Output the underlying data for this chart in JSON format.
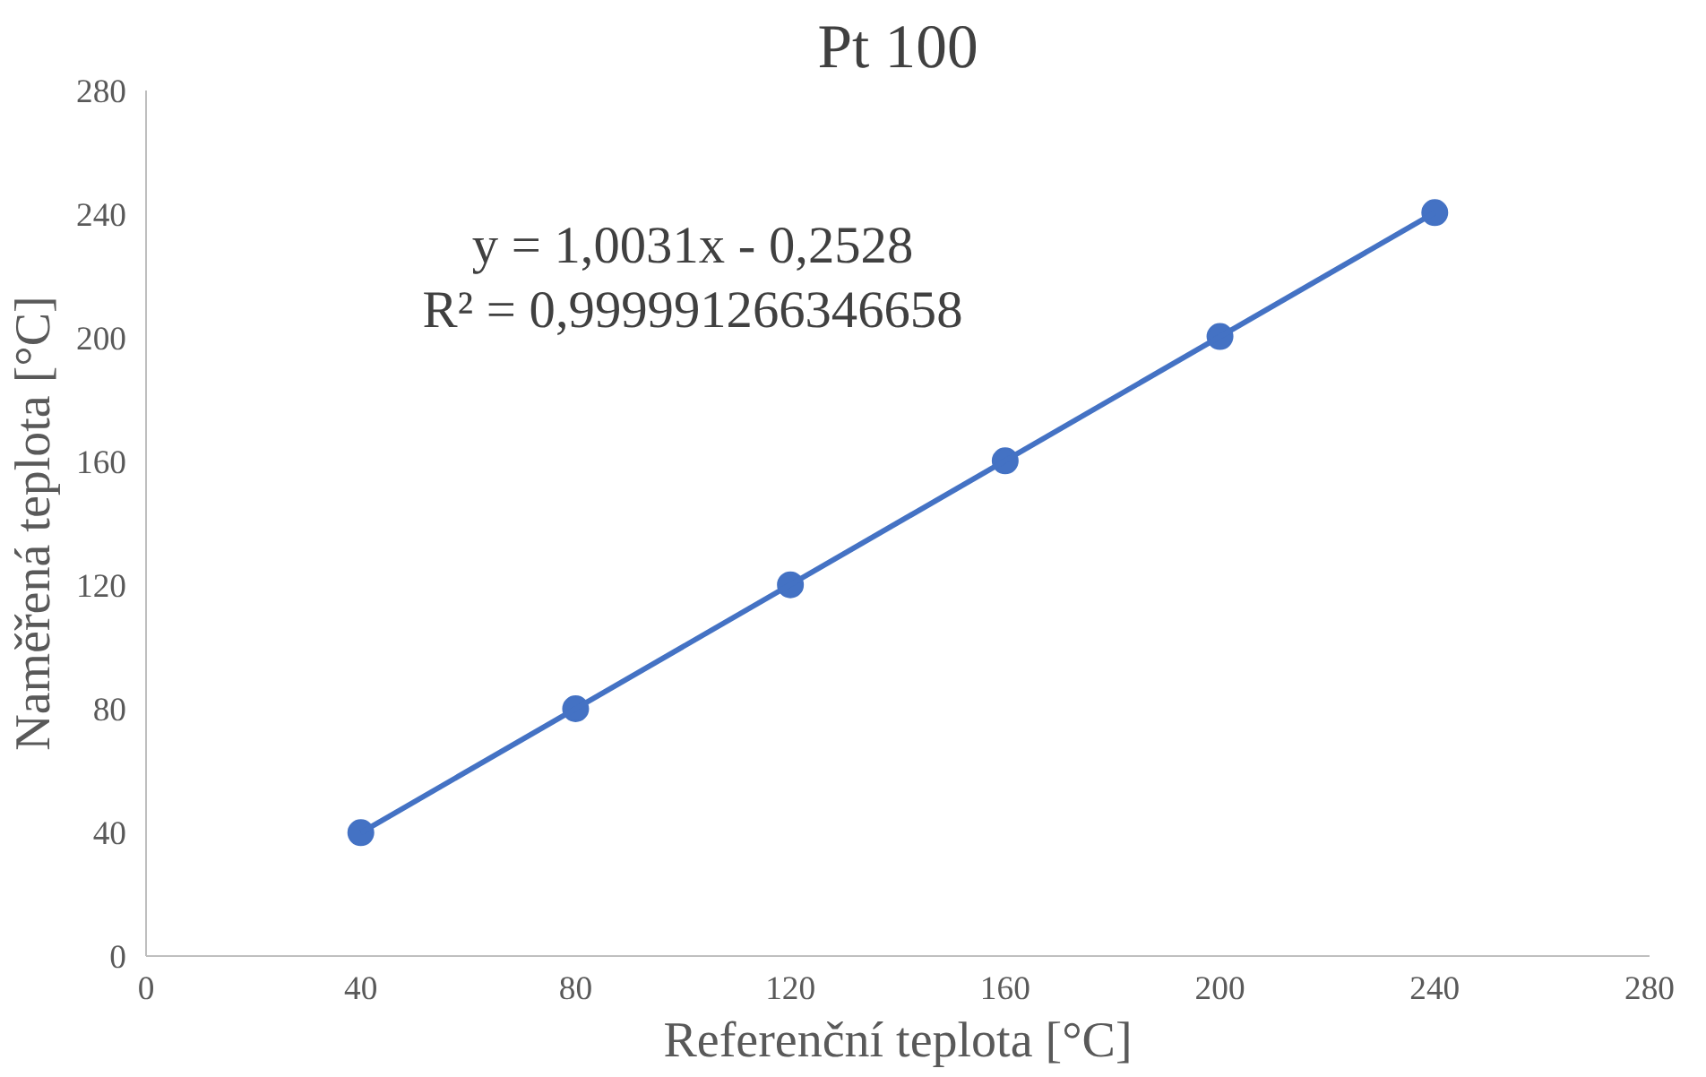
{
  "chart_data": {
    "type": "scatter",
    "title": "Pt 100",
    "xlabel": "Referenční teplota [°C]",
    "ylabel": "Naměřená teplota [°C]",
    "xlim": [
      0,
      280
    ],
    "ylim": [
      0,
      280
    ],
    "xticks": [
      0,
      40,
      80,
      120,
      160,
      200,
      240,
      280
    ],
    "yticks": [
      0,
      40,
      80,
      120,
      160,
      200,
      240,
      280
    ],
    "grid": false,
    "series": [
      {
        "color": "#4472c4",
        "marker": "circle",
        "x": [
          40,
          80,
          120,
          160,
          200,
          240
        ],
        "values": [
          39.9,
          80.0,
          120.1,
          160.2,
          200.4,
          240.5
        ]
      },
      {
        "type": "line",
        "color": "#4472c4",
        "marker": "none",
        "x": [
          40,
          240
        ],
        "values": [
          39.9,
          240.5
        ]
      }
    ],
    "annotations": [
      "y = 1,0031x - 0,2528",
      "R² = 0,999991266346658"
    ]
  }
}
